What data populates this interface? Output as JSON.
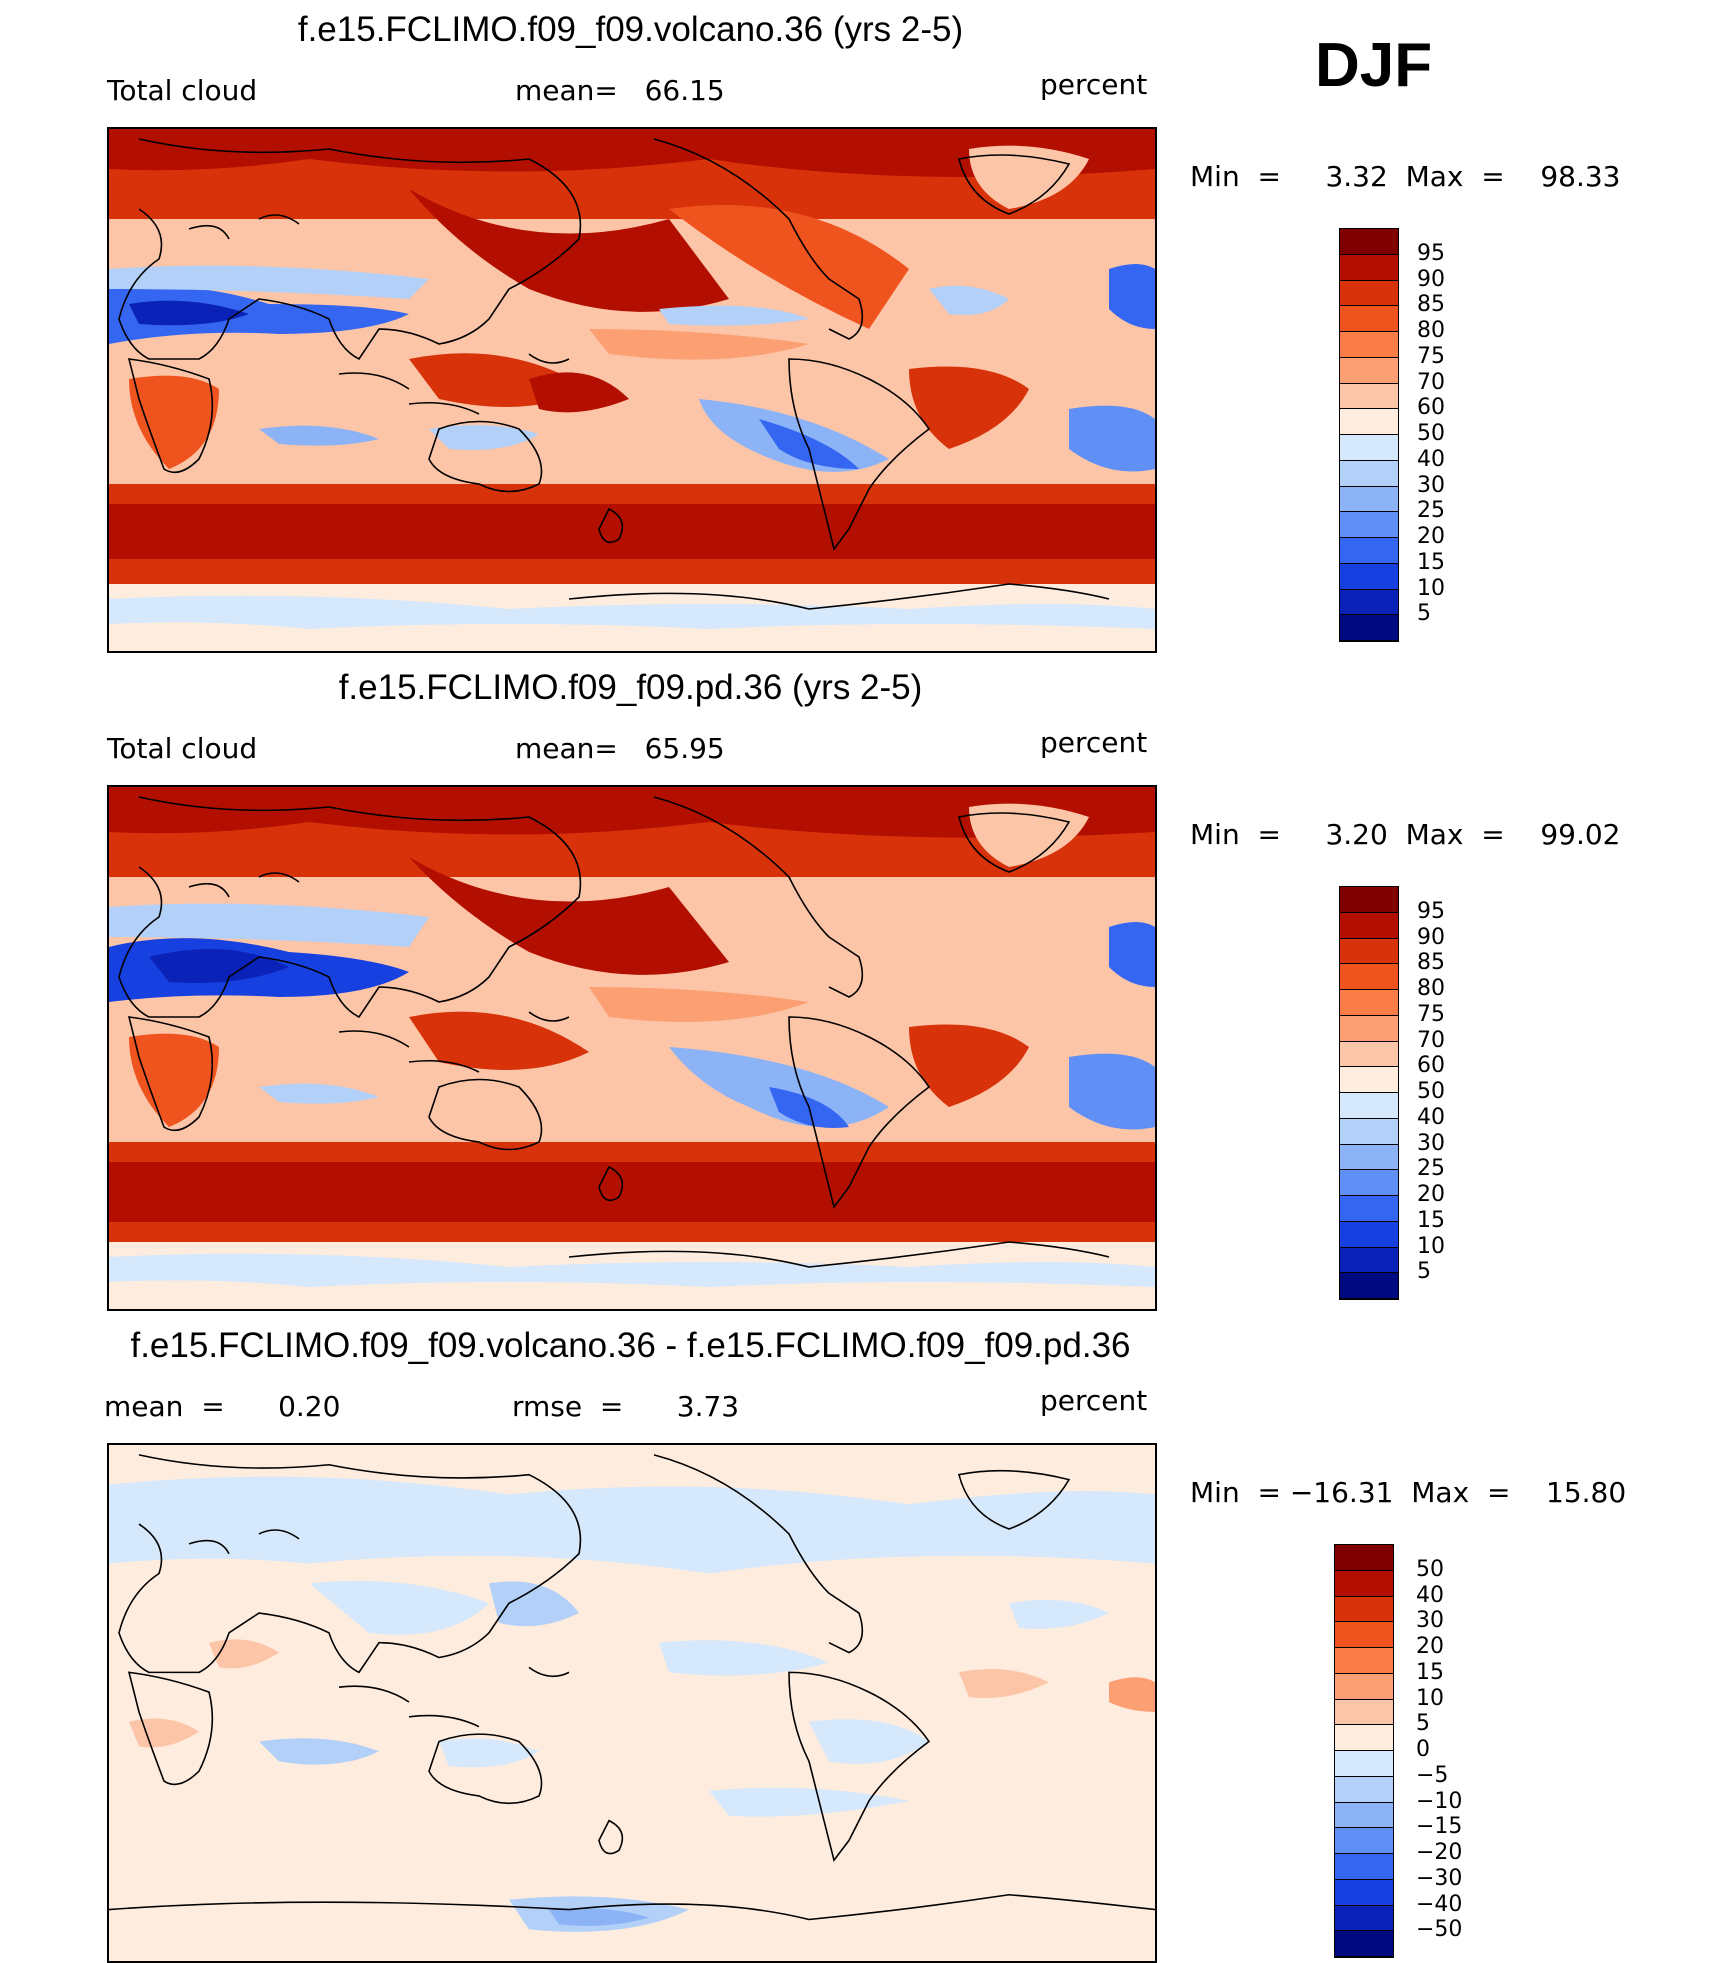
{
  "season": "DJF",
  "panels": [
    {
      "title": "f.e15.FCLIMO.f09_f09.volcano.36 (yrs 2-5)",
      "left": "Total cloud",
      "center": "mean=   66.15",
      "right": "percent",
      "minmax": "Min  =     3.32  Max  =    98.33",
      "colorbar": {
        "labels": [
          "95",
          "90",
          "85",
          "80",
          "75",
          "70",
          "60",
          "50",
          "40",
          "30",
          "25",
          "20",
          "15",
          "10",
          "5"
        ],
        "colors": [
          "#7f0000",
          "#b30f00",
          "#d8320a",
          "#f0541e",
          "#fa7c46",
          "#fca074",
          "#fdc5a8",
          "#feecdf",
          "#d6e8fb",
          "#b3d0f8",
          "#8cb3f6",
          "#6090f5",
          "#3566f2",
          "#1640e0",
          "#0a22b8",
          "#000a80"
        ]
      }
    },
    {
      "title": "f.e15.FCLIMO.f09_f09.pd.36 (yrs 2-5)",
      "left": "Total cloud",
      "center": "mean=   65.95",
      "right": "percent",
      "minmax": "Min  =     3.20  Max  =    99.02",
      "colorbar": {
        "labels": [
          "95",
          "90",
          "85",
          "80",
          "75",
          "70",
          "60",
          "50",
          "40",
          "30",
          "25",
          "20",
          "15",
          "10",
          "5"
        ],
        "colors": [
          "#7f0000",
          "#b30f00",
          "#d8320a",
          "#f0541e",
          "#fa7c46",
          "#fca074",
          "#fdc5a8",
          "#feecdf",
          "#d6e8fb",
          "#b3d0f8",
          "#8cb3f6",
          "#6090f5",
          "#3566f2",
          "#1640e0",
          "#0a22b8",
          "#000a80"
        ]
      }
    },
    {
      "title": "f.e15.FCLIMO.f09_f09.volcano.36 - f.e15.FCLIMO.f09_f09.pd.36",
      "left": "mean  =      0.20",
      "center": "rmse  =      3.73",
      "right": "percent",
      "minmax": "Min  = −16.31  Max  =    15.80",
      "colorbar": {
        "labels": [
          "50",
          "40",
          "30",
          "20",
          "15",
          "10",
          "5",
          "0",
          "−5",
          "−10",
          "−15",
          "−20",
          "−30",
          "−40",
          "−50"
        ],
        "colors": [
          "#7f0000",
          "#b30f00",
          "#d8320a",
          "#f0541e",
          "#fa7c46",
          "#fca074",
          "#fdc5a8",
          "#feecdf",
          "#d6e8fb",
          "#b3d0f8",
          "#8cb3f6",
          "#6090f5",
          "#3566f2",
          "#1640e0",
          "#0a22b8",
          "#000a80"
        ]
      }
    }
  ],
  "chart_data": [
    {
      "type": "heatmap",
      "title": "f.e15.FCLIMO.f09_f09.volcano.36 (yrs 2-5)",
      "variable": "Total cloud",
      "units": "percent",
      "mean": 66.15,
      "min": 3.32,
      "max": 98.33,
      "levels": [
        5,
        10,
        15,
        20,
        25,
        30,
        40,
        50,
        60,
        70,
        75,
        80,
        85,
        90,
        95
      ]
    },
    {
      "type": "heatmap",
      "title": "f.e15.FCLIMO.f09_f09.pd.36 (yrs 2-5)",
      "variable": "Total cloud",
      "units": "percent",
      "mean": 65.95,
      "min": 3.2,
      "max": 99.02,
      "levels": [
        5,
        10,
        15,
        20,
        25,
        30,
        40,
        50,
        60,
        70,
        75,
        80,
        85,
        90,
        95
      ]
    },
    {
      "type": "heatmap",
      "title": "f.e15.FCLIMO.f09_f09.volcano.36 - f.e15.FCLIMO.f09_f09.pd.36",
      "units": "percent",
      "mean": 0.2,
      "rmse": 3.73,
      "min": -16.31,
      "max": 15.8,
      "levels": [
        -50,
        -40,
        -30,
        -20,
        -15,
        -10,
        -5,
        0,
        5,
        10,
        15,
        20,
        30,
        40,
        50
      ]
    }
  ]
}
